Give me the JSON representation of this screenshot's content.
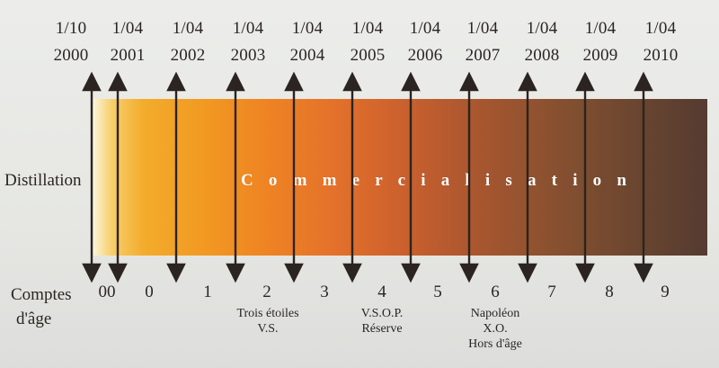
{
  "dates": [
    {
      "day": "1/10",
      "year": "2000"
    },
    {
      "day": "1/04",
      "year": "2001"
    },
    {
      "day": "1/04",
      "year": "2002"
    },
    {
      "day": "1/04",
      "year": "2003"
    },
    {
      "day": "1/04",
      "year": "2004"
    },
    {
      "day": "1/04",
      "year": "2005"
    },
    {
      "day": "1/04",
      "year": "2006"
    },
    {
      "day": "1/04",
      "year": "2007"
    },
    {
      "day": "1/04",
      "year": "2008"
    },
    {
      "day": "1/04",
      "year": "2009"
    },
    {
      "day": "1/04",
      "year": "2010"
    }
  ],
  "labels": {
    "distillation": "Distillation",
    "commercialisation": "Commercialisation",
    "comptes_line1": "Comptes",
    "comptes_line2": "d'âge"
  },
  "comptes": [
    "00",
    "0",
    "1",
    "2",
    "3",
    "4",
    "5",
    "6",
    "7",
    "8",
    "9"
  ],
  "qualities": [
    {
      "lines": [
        "Trois étoiles",
        "V.S."
      ]
    },
    {
      "lines": [
        "V.S.O.P.",
        "Réserve"
      ]
    },
    {
      "lines": [
        "Napoléon",
        "X.O.",
        "Hors d'âge"
      ]
    }
  ],
  "colors": {
    "arrow": "#2b2420",
    "bar_start": "#fbf4d8",
    "bar_end": "#553b31",
    "label_on_bar": "#ffffff"
  }
}
